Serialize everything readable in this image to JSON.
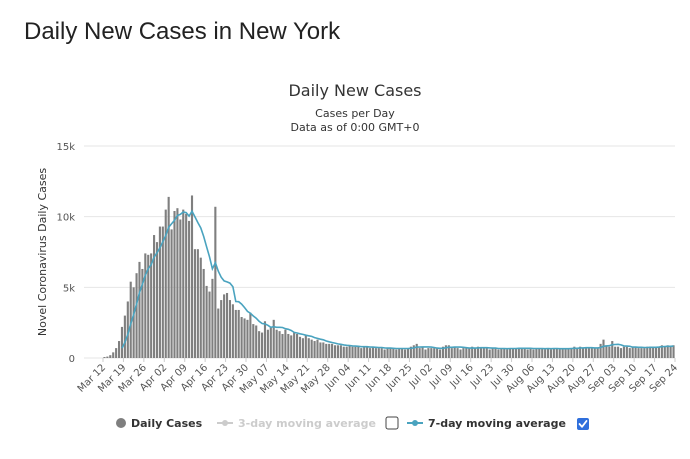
{
  "page": {
    "heading": "Daily New Cases in New York"
  },
  "colors": {
    "bar": "#7f7f7f",
    "line": "#4aa3bf",
    "grid": "#e6e6e6",
    "disabled": "#cccccc",
    "checkbox": "#2f6fdc"
  },
  "chart_data": {
    "type": "bar",
    "title": "Daily New Cases",
    "subtitle_lines": [
      "Cases per Day",
      "Data as of 0:00 GMT+0"
    ],
    "xlabel": "",
    "ylabel": "Novel Coronavirus Daily Cases",
    "ylim": [
      0,
      15000
    ],
    "yticks": [
      0,
      5000,
      10000,
      15000
    ],
    "ytick_labels": [
      "0",
      "5k",
      "10k",
      "15k"
    ],
    "x_tick_labels": [
      "Mar 12",
      "Mar 19",
      "Mar 26",
      "Apr 02",
      "Apr 09",
      "Apr 16",
      "Apr 23",
      "Apr 30",
      "May 07",
      "May 14",
      "May 21",
      "May 28",
      "Jun 04",
      "Jun 11",
      "Jun 18",
      "Jun 25",
      "Jul 02",
      "Jul 09",
      "Jul 16",
      "Jul 23",
      "Jul 30",
      "Aug 06",
      "Aug 13",
      "Aug 20",
      "Aug 27",
      "Sep 03",
      "Sep 10",
      "Sep 17",
      "Sep 24"
    ],
    "x_start": "Mar 12",
    "bar_series": {
      "name": "Daily Cases",
      "values": [
        70,
        100,
        200,
        400,
        700,
        1200,
        2200,
        3000,
        4000,
        5400,
        5000,
        6000,
        6800,
        6300,
        7400,
        7300,
        7400,
        8700,
        8200,
        9300,
        9300,
        10500,
        11400,
        9100,
        10400,
        10600,
        9800,
        10500,
        10200,
        9700,
        11500,
        7700,
        7700,
        7100,
        6300,
        5100,
        4700,
        5600,
        10700,
        3500,
        4100,
        4500,
        4600,
        4100,
        3800,
        3400,
        3400,
        2900,
        2800,
        2700,
        3200,
        2400,
        2300,
        1900,
        1800,
        2600,
        2000,
        2200,
        2700,
        2000,
        1900,
        1700,
        2000,
        1700,
        1600,
        1800,
        1700,
        1500,
        1400,
        1600,
        1400,
        1300,
        1200,
        1300,
        1100,
        1100,
        1000,
        1000,
        1000,
        900,
        900,
        900,
        800,
        800,
        900,
        800,
        800,
        800,
        700,
        800,
        800,
        700,
        800,
        700,
        700,
        700,
        600,
        700,
        700,
        700,
        600,
        700,
        700,
        600,
        700,
        800,
        900,
        1000,
        700,
        800,
        600,
        700,
        700,
        700,
        700,
        600,
        800,
        900,
        900,
        700,
        800,
        700,
        600,
        700,
        700,
        700,
        800,
        700,
        800,
        700,
        700,
        700,
        600,
        700,
        700,
        600,
        700,
        700,
        600,
        700,
        700,
        700,
        700,
        700,
        700,
        600,
        700,
        600,
        700,
        700,
        700,
        600,
        700,
        600,
        700,
        700,
        600,
        700,
        600,
        700,
        700,
        800,
        700,
        800,
        700,
        700,
        700,
        700,
        700,
        700,
        1000,
        1300,
        900,
        800,
        1200,
        800,
        800,
        700,
        800,
        800,
        700,
        800,
        800,
        700,
        700,
        700,
        800,
        800,
        800,
        800,
        800,
        900,
        800,
        900,
        800,
        900
      ]
    },
    "series": [
      {
        "name": "3-day moving average",
        "enabled": false
      },
      {
        "name": "7-day moving average",
        "enabled": true
      }
    ]
  },
  "legend": {
    "daily_label": "Daily Cases",
    "ma3_label": "3-day moving average",
    "ma7_label": "7-day moving average"
  }
}
